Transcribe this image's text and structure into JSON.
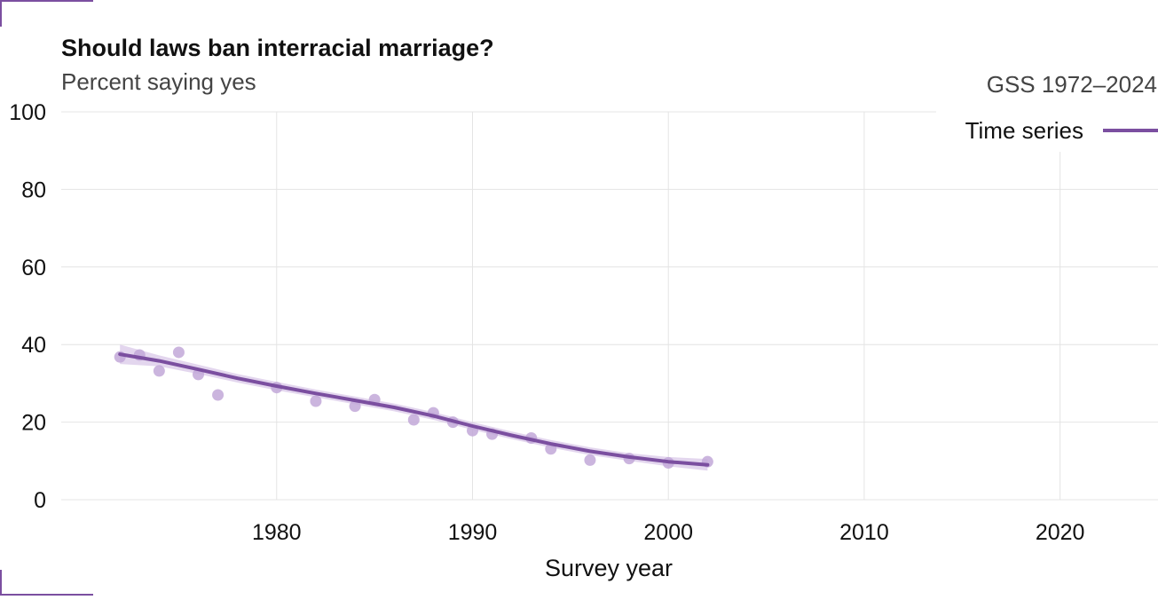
{
  "chart_data": {
    "type": "line",
    "title": "Should laws ban interracial marriage?",
    "subtitle": "Percent saying yes",
    "xlabel": "Survey year",
    "ylabel": "",
    "xlim": [
      1969,
      2025
    ],
    "ylim": [
      0,
      100
    ],
    "x_ticks": [
      1980,
      1990,
      2000,
      2010,
      2020
    ],
    "y_ticks": [
      0,
      20,
      40,
      60,
      80,
      100
    ],
    "grid": true,
    "legend": {
      "title": "GSS 1972–2024",
      "placement": "top-right",
      "entries": [
        "Time series"
      ]
    },
    "colors": {
      "series": "#7B4FA0",
      "points": "#C2A8D8",
      "band": "#D9C8E8"
    },
    "series": [
      {
        "name": "Time series",
        "points": [
          [
            1972,
            36.8
          ],
          [
            1973,
            37.3
          ],
          [
            1974,
            33.2
          ],
          [
            1975,
            38.0
          ],
          [
            1976,
            32.3
          ],
          [
            1977,
            27.0
          ],
          [
            1980,
            28.9
          ],
          [
            1982,
            25.4
          ],
          [
            1984,
            24.1
          ],
          [
            1985,
            25.8
          ],
          [
            1987,
            20.6
          ],
          [
            1988,
            22.4
          ],
          [
            1989,
            20.0
          ],
          [
            1990,
            17.8
          ],
          [
            1991,
            16.9
          ],
          [
            1993,
            15.9
          ],
          [
            1994,
            13.1
          ],
          [
            1996,
            10.2
          ],
          [
            1998,
            10.6
          ],
          [
            2000,
            9.5
          ],
          [
            2002,
            9.8
          ]
        ],
        "trend": [
          [
            1972,
            37.5
          ],
          [
            1974,
            35.8
          ],
          [
            1976,
            33.6
          ],
          [
            1978,
            31.3
          ],
          [
            1980,
            29.3
          ],
          [
            1982,
            27.4
          ],
          [
            1984,
            25.6
          ],
          [
            1986,
            23.8
          ],
          [
            1988,
            21.6
          ],
          [
            1990,
            19.0
          ],
          [
            1992,
            16.6
          ],
          [
            1994,
            14.4
          ],
          [
            1996,
            12.5
          ],
          [
            1998,
            11.0
          ],
          [
            2000,
            9.8
          ],
          [
            2002,
            9.0
          ]
        ],
        "band_upper": [
          [
            1972,
            40.0
          ],
          [
            1974,
            37.2
          ],
          [
            1976,
            34.8
          ],
          [
            1978,
            32.4
          ],
          [
            1980,
            30.4
          ],
          [
            1982,
            28.4
          ],
          [
            1984,
            26.6
          ],
          [
            1986,
            24.8
          ],
          [
            1988,
            22.6
          ],
          [
            1990,
            20.0
          ],
          [
            1992,
            17.6
          ],
          [
            1994,
            15.4
          ],
          [
            1996,
            13.5
          ],
          [
            1998,
            12.0
          ],
          [
            2000,
            11.0
          ],
          [
            2002,
            10.5
          ]
        ],
        "band_lower": [
          [
            1972,
            35.0
          ],
          [
            1974,
            34.4
          ],
          [
            1976,
            32.4
          ],
          [
            1978,
            30.2
          ],
          [
            1980,
            28.2
          ],
          [
            1982,
            26.4
          ],
          [
            1984,
            24.6
          ],
          [
            1986,
            22.8
          ],
          [
            1988,
            20.6
          ],
          [
            1990,
            18.0
          ],
          [
            1992,
            15.6
          ],
          [
            1994,
            13.4
          ],
          [
            1996,
            11.5
          ],
          [
            1998,
            10.0
          ],
          [
            2000,
            8.6
          ],
          [
            2002,
            7.5
          ]
        ]
      }
    ]
  }
}
